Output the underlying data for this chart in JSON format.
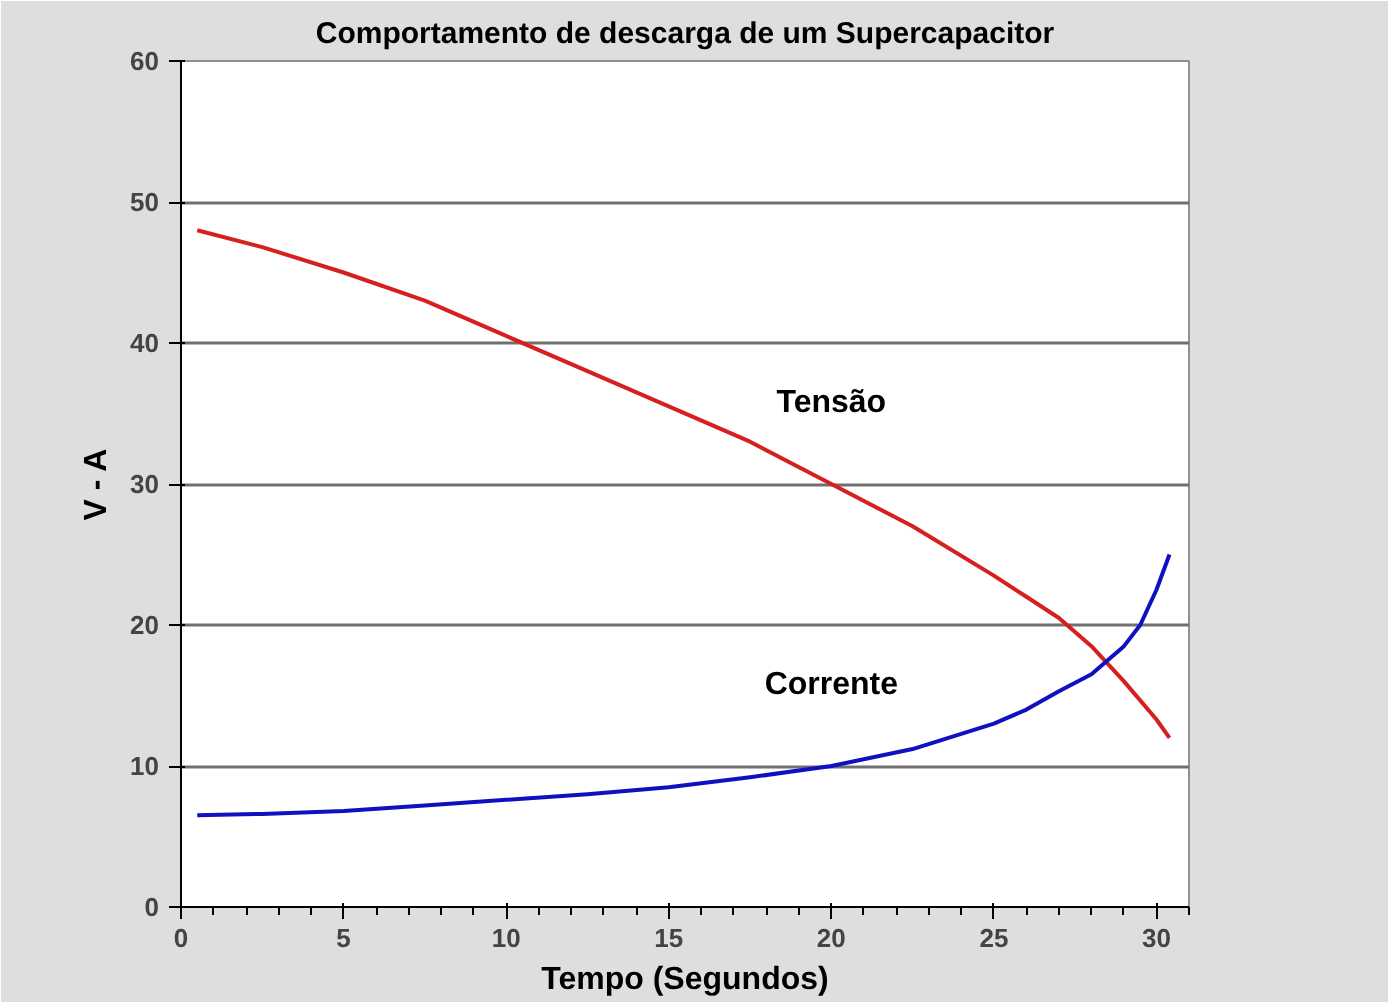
{
  "chart_data": {
    "type": "line",
    "title": "Comportamento de descarga de um Supercapacitor",
    "xlabel": "Tempo (Segundos)",
    "ylabel": "V - A",
    "xlim": [
      0,
      31
    ],
    "xticks": [
      0,
      5,
      10,
      15,
      20,
      25,
      30
    ],
    "ylim": [
      0,
      60
    ],
    "yticks": [
      0,
      10,
      20,
      30,
      40,
      50,
      60
    ],
    "grid": "y",
    "series": [
      {
        "name": "Tensão",
        "color": "#d62020",
        "x": [
          0.5,
          2.5,
          5,
          7.5,
          10,
          12.5,
          15,
          17.5,
          20,
          22.5,
          25,
          26,
          27,
          28,
          29,
          30,
          30.4
        ],
        "values": [
          48,
          46.8,
          45,
          43,
          40.5,
          38,
          35.5,
          33,
          30,
          27,
          23.5,
          22,
          20.5,
          18.5,
          16,
          13.3,
          12
        ]
      },
      {
        "name": "Corrente",
        "color": "#1010c0",
        "x": [
          0.5,
          2.5,
          5,
          7.5,
          10,
          12.5,
          15,
          17.5,
          20,
          22.5,
          25,
          26,
          27,
          28,
          29,
          29.5,
          30,
          30.4
        ],
        "values": [
          6.5,
          6.6,
          6.8,
          7.2,
          7.6,
          8,
          8.5,
          9.2,
          10,
          11.2,
          13,
          14,
          15.3,
          16.5,
          18.5,
          20,
          22.5,
          25
        ]
      }
    ]
  }
}
